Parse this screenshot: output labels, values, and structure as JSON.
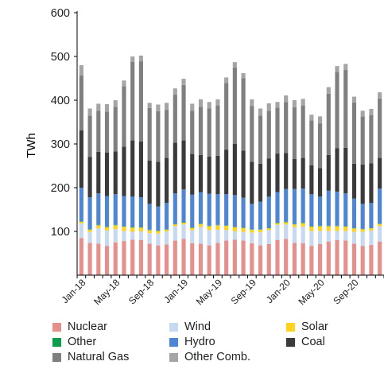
{
  "chart_data": {
    "type": "bar",
    "stacked": true,
    "ylabel": "TWh",
    "ylim": [
      0,
      600
    ],
    "yticks": [
      100,
      200,
      300,
      400,
      500,
      600
    ],
    "xtick_labels": [
      "Jan-18",
      "May-18",
      "Sep-18",
      "Jan-19",
      "May-19",
      "Sep-19",
      "Jan-20",
      "May-20",
      "Sep-20"
    ],
    "categories": [
      "Jan-18",
      "Feb-18",
      "Mar-18",
      "Apr-18",
      "May-18",
      "Jun-18",
      "Jul-18",
      "Aug-18",
      "Sep-18",
      "Oct-18",
      "Nov-18",
      "Dec-18",
      "Jan-19",
      "Feb-19",
      "Mar-19",
      "Apr-19",
      "May-19",
      "Jun-19",
      "Jul-19",
      "Aug-19",
      "Sep-19",
      "Oct-19",
      "Nov-19",
      "Dec-19",
      "Jan-20",
      "Feb-20",
      "Mar-20",
      "Apr-20",
      "May-20",
      "Jun-20",
      "Jul-20",
      "Aug-20",
      "Sep-20",
      "Oct-20",
      "Nov-20",
      "Dec-20"
    ],
    "grid": false,
    "legend_position": "bottom",
    "series": [
      {
        "name": "Nuclear",
        "color": "#e6908e",
        "values": [
          85,
          74,
          72,
          67,
          75,
          78,
          81,
          80,
          72,
          68,
          70,
          79,
          83,
          73,
          72,
          68,
          74,
          79,
          81,
          79,
          73,
          68,
          71,
          80,
          83,
          74,
          73,
          67,
          71,
          77,
          80,
          79,
          72,
          67,
          69,
          77
        ]
      },
      {
        "name": "Wind",
        "color": "#c6d9f1",
        "values": [
          33,
          25,
          35,
          35,
          30,
          23,
          18,
          20,
          24,
          27,
          30,
          33,
          33,
          30,
          38,
          35,
          30,
          24,
          19,
          20,
          24,
          30,
          32,
          35,
          33,
          36,
          38,
          34,
          30,
          24,
          21,
          22,
          27,
          32,
          33,
          35
        ]
      },
      {
        "name": "Solar",
        "color": "#ffd21f",
        "values": [
          4,
          5,
          7,
          8,
          9,
          10,
          10,
          9,
          7,
          6,
          4,
          4,
          4,
          5,
          7,
          9,
          10,
          10,
          10,
          9,
          7,
          6,
          4,
          4,
          5,
          6,
          8,
          10,
          11,
          11,
          11,
          10,
          8,
          6,
          5,
          5
        ]
      },
      {
        "name": "Other",
        "color": "#0a9e4a",
        "values": [
          1,
          1,
          1,
          1,
          1,
          1,
          1,
          1,
          1,
          1,
          1,
          1,
          1,
          1,
          1,
          1,
          1,
          1,
          1,
          1,
          1,
          1,
          1,
          1,
          1,
          1,
          1,
          1,
          1,
          1,
          1,
          1,
          1,
          1,
          1,
          1
        ]
      },
      {
        "name": "Hydro",
        "color": "#4f86d4",
        "values": [
          77,
          73,
          72,
          70,
          70,
          69,
          70,
          68,
          59,
          55,
          60,
          70,
          75,
          75,
          72,
          73,
          70,
          71,
          72,
          68,
          58,
          63,
          72,
          70,
          75,
          80,
          78,
          73,
          67,
          80,
          78,
          75,
          67,
          57,
          57,
          80
        ]
      },
      {
        "name": "Coal",
        "color": "#3b3b3b",
        "values": [
          131,
          92,
          95,
          99,
          98,
          113,
          128,
          128,
          99,
          102,
          103,
          116,
          112,
          93,
          85,
          85,
          88,
          102,
          117,
          108,
          96,
          87,
          87,
          88,
          82,
          69,
          70,
          66,
          65,
          82,
          99,
          104,
          80,
          90,
          91,
          70
        ]
      },
      {
        "name": "Natural Gas",
        "color": "#7f7f7f",
        "values": [
          126,
          95,
          94,
          94,
          102,
          138,
          180,
          183,
          120,
          116,
          110,
          110,
          127,
          99,
          110,
          110,
          115,
          152,
          175,
          165,
          128,
          110,
          109,
          105,
          117,
          118,
          120,
          103,
          102,
          140,
          175,
          178,
          140,
          110,
          110,
          136
        ]
      },
      {
        "name": "Other Comb.",
        "color": "#a5a5a5",
        "values": [
          23,
          16,
          16,
          17,
          15,
          13,
          12,
          13,
          12,
          15,
          16,
          14,
          14,
          16,
          17,
          15,
          14,
          13,
          12,
          12,
          15,
          16,
          17,
          13,
          15,
          16,
          15,
          13,
          16,
          15,
          13,
          14,
          13,
          13,
          14,
          14
        ]
      }
    ]
  }
}
